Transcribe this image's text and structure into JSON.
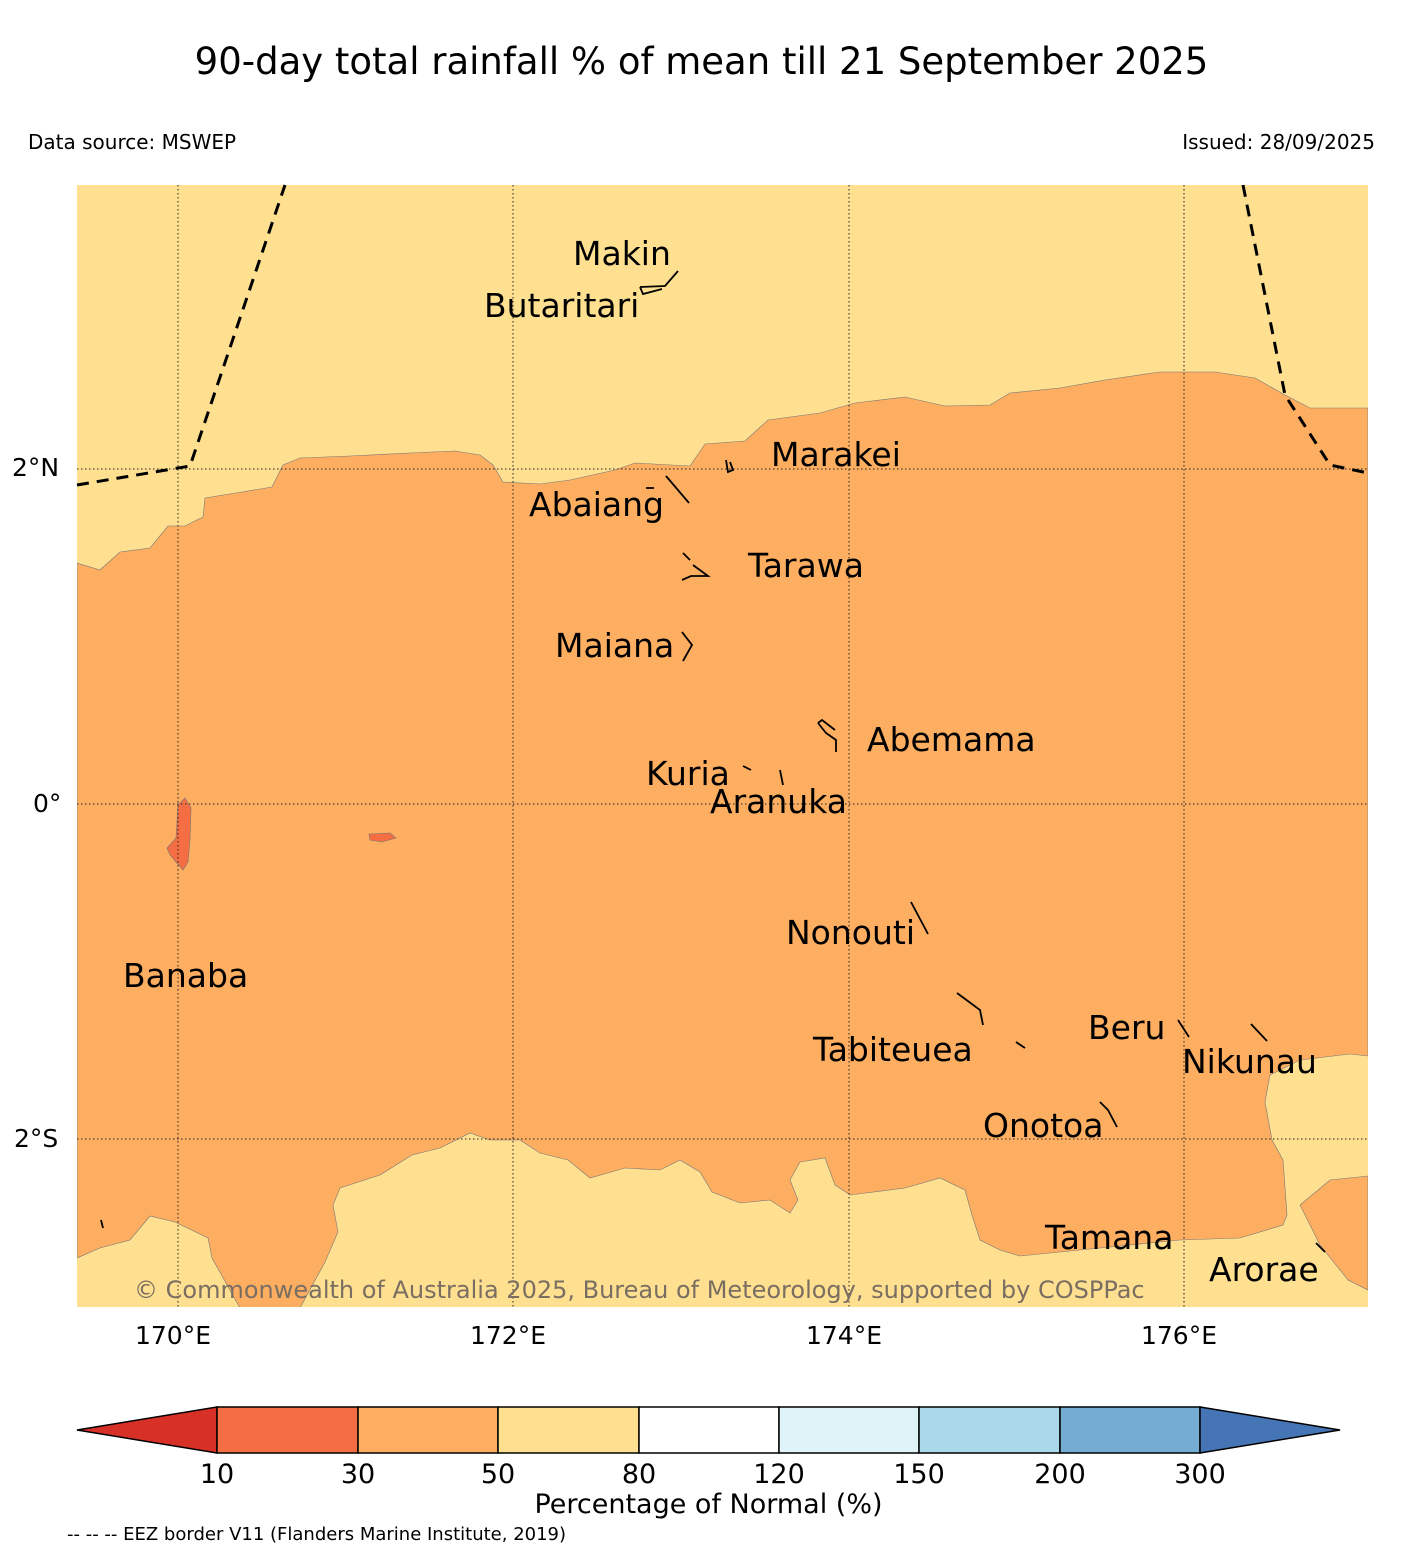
{
  "title": "90-day total rainfall % of mean till 21 September 2025",
  "data_source": "Data source: MSWEP",
  "issued": "Issued: 28/09/2025",
  "lon_ticks": [
    "170°E",
    "172°E",
    "174°E",
    "176°E"
  ],
  "lat_ticks": [
    "2°N",
    "0°",
    "2°S"
  ],
  "islands": {
    "makin": "Makin",
    "butaritari": "Butaritari",
    "marakei": "Marakei",
    "abaiang": "Abaiang",
    "tarawa": "Tarawa",
    "maiana": "Maiana",
    "abemama": "Abemama",
    "kuria": "Kuria",
    "aranuka": "Aranuka",
    "nonouti": "Nonouti",
    "banaba": "Banaba",
    "beru": "Beru",
    "tabiteuea": "Tabiteuea",
    "nikunau": "Nikunau",
    "onotoa": "Onotoa",
    "tamana": "Tamana",
    "arorae": "Arorae"
  },
  "copyright": "© Commonwealth of Australia 2025, Bureau of Meteorology, supported by COSPPac",
  "colorbar": {
    "title": "Percentage of Normal (%)",
    "ticks": [
      "10",
      "30",
      "50",
      "80",
      "120",
      "150",
      "200",
      "300"
    ],
    "colors": {
      "under": "#d73027",
      "c10_30": "#f46d43",
      "c30_50": "#fdae61",
      "c50_80": "#fee090",
      "c80_120": "#ffffff",
      "c120_150": "#e0f3f8",
      "c150_200": "#abd9e9",
      "c200_300": "#74add1",
      "over": "#4575b4"
    }
  },
  "eez_note": "-- -- -- EEZ border V11 (Flanders Marine Institute, 2019)"
}
